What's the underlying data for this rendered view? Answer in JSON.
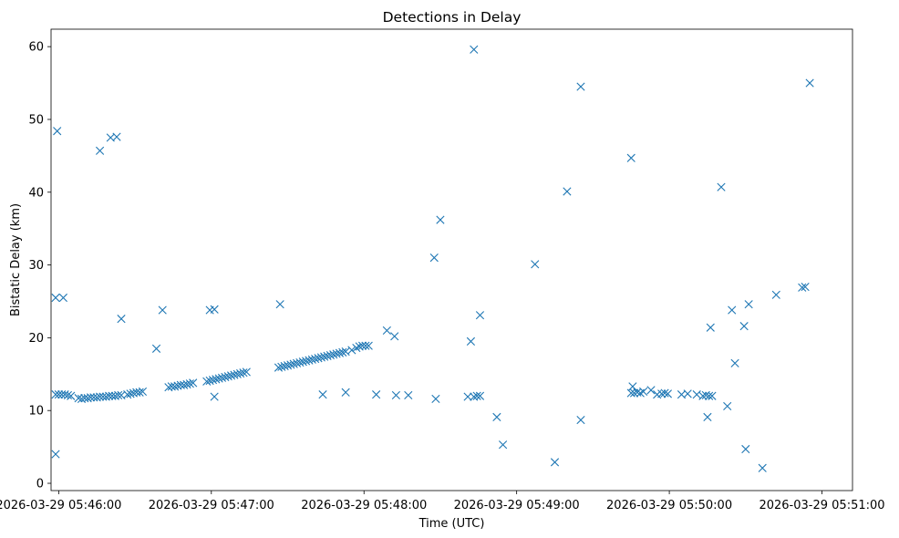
{
  "chart_data": {
    "type": "scatter",
    "title": "Detections in Delay",
    "xlabel": "Time (UTC)",
    "ylabel": "Bistatic Delay (km)",
    "marker": "x",
    "color": "#1f77b4",
    "xlim": [
      -0.05,
      5.2
    ],
    "ylim": [
      -1,
      62.4
    ],
    "x_unit": "minutes after 2026-03-29 05:46:00",
    "xticks": [
      {
        "value": 0,
        "label": "2026-03-29 05:46:00"
      },
      {
        "value": 1,
        "label": "2026-03-29 05:47:00"
      },
      {
        "value": 2,
        "label": "2026-03-29 05:48:00"
      },
      {
        "value": 3,
        "label": "2026-03-29 05:49:00"
      },
      {
        "value": 4,
        "label": "2026-03-29 05:50:00"
      },
      {
        "value": 5,
        "label": "2026-03-29 05:51:00"
      }
    ],
    "yticks": [
      {
        "value": 0,
        "label": "0"
      },
      {
        "value": 10,
        "label": "10"
      },
      {
        "value": 20,
        "label": "20"
      },
      {
        "value": 30,
        "label": "30"
      },
      {
        "value": 40,
        "label": "40"
      },
      {
        "value": 50,
        "label": "50"
      },
      {
        "value": 60,
        "label": "60"
      }
    ],
    "points": [
      [
        -0.02,
        12.2
      ],
      [
        0.0,
        12.2
      ],
      [
        0.02,
        12.2
      ],
      [
        0.04,
        12.2
      ],
      [
        0.06,
        12.1
      ],
      [
        0.08,
        12.0
      ],
      [
        0.13,
        11.7
      ],
      [
        0.15,
        11.6
      ],
      [
        0.17,
        11.7
      ],
      [
        0.19,
        11.7
      ],
      [
        0.21,
        11.8
      ],
      [
        0.23,
        11.8
      ],
      [
        0.25,
        11.8
      ],
      [
        0.27,
        11.9
      ],
      [
        0.29,
        11.9
      ],
      [
        0.31,
        11.9
      ],
      [
        0.33,
        12.0
      ],
      [
        0.35,
        12.0
      ],
      [
        0.37,
        12.0
      ],
      [
        0.39,
        12.1
      ],
      [
        0.41,
        12.1
      ],
      [
        0.45,
        12.2
      ],
      [
        0.47,
        12.3
      ],
      [
        0.49,
        12.4
      ],
      [
        0.51,
        12.5
      ],
      [
        0.53,
        12.5
      ],
      [
        0.55,
        12.6
      ],
      [
        0.72,
        13.2
      ],
      [
        0.74,
        13.3
      ],
      [
        0.76,
        13.3
      ],
      [
        0.78,
        13.4
      ],
      [
        0.8,
        13.5
      ],
      [
        0.82,
        13.5
      ],
      [
        0.84,
        13.6
      ],
      [
        0.86,
        13.7
      ],
      [
        0.88,
        13.8
      ],
      [
        0.97,
        14.0
      ],
      [
        0.99,
        14.1
      ],
      [
        1.01,
        14.2
      ],
      [
        1.03,
        14.3
      ],
      [
        1.05,
        14.4
      ],
      [
        1.07,
        14.5
      ],
      [
        1.09,
        14.6
      ],
      [
        1.11,
        14.7
      ],
      [
        1.13,
        14.8
      ],
      [
        1.15,
        14.9
      ],
      [
        1.17,
        15.0
      ],
      [
        1.19,
        15.1
      ],
      [
        1.21,
        15.2
      ],
      [
        1.23,
        15.3
      ],
      [
        1.44,
        15.9
      ],
      [
        1.46,
        16.0
      ],
      [
        1.48,
        16.1
      ],
      [
        1.5,
        16.2
      ],
      [
        1.52,
        16.3
      ],
      [
        1.54,
        16.4
      ],
      [
        1.56,
        16.5
      ],
      [
        1.58,
        16.6
      ],
      [
        1.6,
        16.7
      ],
      [
        1.62,
        16.8
      ],
      [
        1.64,
        16.9
      ],
      [
        1.66,
        17.0
      ],
      [
        1.68,
        17.1
      ],
      [
        1.7,
        17.2
      ],
      [
        1.72,
        17.3
      ],
      [
        1.74,
        17.4
      ],
      [
        1.76,
        17.5
      ],
      [
        1.78,
        17.6
      ],
      [
        1.8,
        17.7
      ],
      [
        1.82,
        17.8
      ],
      [
        1.84,
        17.9
      ],
      [
        1.86,
        18.0
      ],
      [
        1.88,
        18.1
      ],
      [
        1.92,
        18.3
      ],
      [
        1.95,
        18.6
      ],
      [
        1.97,
        18.8
      ],
      [
        1.99,
        18.9
      ],
      [
        2.01,
        18.9
      ],
      [
        2.03,
        18.9
      ],
      [
        -0.02,
        4.0
      ],
      [
        -0.02,
        25.5
      ],
      [
        0.03,
        25.5
      ],
      [
        -0.01,
        48.4
      ],
      [
        0.27,
        45.7
      ],
      [
        0.34,
        47.5
      ],
      [
        0.38,
        47.6
      ],
      [
        0.41,
        22.6
      ],
      [
        0.64,
        18.5
      ],
      [
        0.68,
        23.8
      ],
      [
        0.99,
        23.8
      ],
      [
        1.02,
        23.9
      ],
      [
        1.02,
        11.9
      ],
      [
        1.45,
        24.6
      ],
      [
        1.73,
        12.2
      ],
      [
        1.88,
        12.5
      ],
      [
        2.08,
        12.2
      ],
      [
        2.15,
        21.0
      ],
      [
        2.2,
        20.2
      ],
      [
        2.21,
        12.1
      ],
      [
        2.29,
        12.1
      ],
      [
        2.46,
        31.0
      ],
      [
        2.47,
        11.6
      ],
      [
        2.5,
        36.2
      ],
      [
        2.68,
        11.9
      ],
      [
        2.7,
        19.5
      ],
      [
        2.72,
        11.9
      ],
      [
        2.74,
        12.0
      ],
      [
        2.76,
        12.0
      ],
      [
        2.72,
        59.6
      ],
      [
        2.76,
        23.1
      ],
      [
        2.87,
        9.1
      ],
      [
        2.91,
        5.3
      ],
      [
        3.12,
        30.1
      ],
      [
        3.25,
        2.9
      ],
      [
        3.33,
        40.1
      ],
      [
        3.42,
        54.5
      ],
      [
        3.42,
        8.7
      ],
      [
        3.75,
        12.4
      ],
      [
        3.77,
        12.4
      ],
      [
        3.79,
        12.5
      ],
      [
        3.81,
        12.4
      ],
      [
        3.83,
        12.6
      ],
      [
        3.76,
        13.3
      ],
      [
        3.75,
        44.7
      ],
      [
        3.88,
        12.8
      ],
      [
        3.92,
        12.2
      ],
      [
        3.95,
        12.3
      ],
      [
        3.97,
        12.4
      ],
      [
        3.99,
        12.3
      ],
      [
        4.08,
        12.2
      ],
      [
        4.12,
        12.3
      ],
      [
        4.18,
        12.2
      ],
      [
        4.22,
        12.0
      ],
      [
        4.24,
        12.1
      ],
      [
        4.26,
        12.0
      ],
      [
        4.28,
        12.0
      ],
      [
        4.25,
        9.1
      ],
      [
        4.27,
        21.4
      ],
      [
        4.34,
        40.7
      ],
      [
        4.38,
        10.6
      ],
      [
        4.41,
        23.8
      ],
      [
        4.43,
        16.5
      ],
      [
        4.49,
        21.6
      ],
      [
        4.5,
        4.7
      ],
      [
        4.52,
        24.6
      ],
      [
        4.61,
        2.1
      ],
      [
        4.7,
        25.9
      ],
      [
        4.87,
        26.9
      ],
      [
        4.89,
        27.0
      ],
      [
        4.92,
        55.0
      ]
    ]
  }
}
